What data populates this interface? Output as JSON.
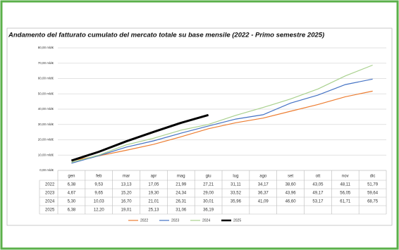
{
  "chart_data": {
    "type": "line",
    "title": "Andamento del fatturato cumulato del mercato totale su base mensile (2022 - Primo semestre 2025)",
    "categories": [
      "gen",
      "feb",
      "mar",
      "apr",
      "mag",
      "giu",
      "lug",
      "ago",
      "set",
      "ott",
      "nov",
      "dic"
    ],
    "ylim": [
      0,
      80
    ],
    "yticks": [
      {
        "value": 0,
        "label": "0,00 mld€"
      },
      {
        "value": 10,
        "label": "10,00 mld€"
      },
      {
        "value": 20,
        "label": "20,00 mld€"
      },
      {
        "value": 30,
        "label": "30,00 mld€"
      },
      {
        "value": 40,
        "label": "40,00 mld€"
      },
      {
        "value": 50,
        "label": "50,00 mld€"
      },
      {
        "value": 60,
        "label": "60,00 mld€"
      },
      {
        "value": 70,
        "label": "70,00 mld€"
      },
      {
        "value": 80,
        "label": "80,00 mld€"
      }
    ],
    "grid": true,
    "legend": "bottom",
    "series": [
      {
        "name": "2022",
        "color": "#ed7d31",
        "values": [
          6.38,
          9.53,
          13.13,
          17.05,
          21.99,
          27.21,
          31.11,
          34.17,
          38.6,
          43.05,
          48.11,
          51.79
        ],
        "value_labels": [
          "6,38",
          "9,53",
          "13,13",
          "17,05",
          "21,99",
          "27,21",
          "31,11",
          "34,17",
          "38,60",
          "43,05",
          "48,11",
          "51,79"
        ]
      },
      {
        "name": "2023",
        "color": "#4472c4",
        "values": [
          4.67,
          9.65,
          15.2,
          19.3,
          24.34,
          29.0,
          33.52,
          36.37,
          43.96,
          49.17,
          56.05,
          59.64
        ],
        "value_labels": [
          "4,67",
          "9,65",
          "15,20",
          "19,30",
          "24,34",
          "29,00",
          "33,52",
          "36,37",
          "43,96",
          "49,17",
          "56,05",
          "59,64"
        ]
      },
      {
        "name": "2024",
        "color": "#a9d18e",
        "values": [
          5.3,
          10.03,
          16.7,
          21.01,
          26.31,
          30.01,
          35.96,
          41.09,
          46.6,
          53.17,
          61.71,
          68.75
        ],
        "value_labels": [
          "5,30",
          "10,03",
          "16,70",
          "21,01",
          "26,31",
          "30,01",
          "35,96",
          "41,09",
          "46,60",
          "53,17",
          "61,71",
          "68,75"
        ]
      },
      {
        "name": "2025",
        "color": "#000000",
        "values": [
          6.38,
          12.2,
          19.01,
          25.13,
          31.06,
          36.19,
          null,
          null,
          null,
          null,
          null,
          null
        ],
        "value_labels": [
          "6,38",
          "12,20",
          "19,01",
          "25,13",
          "31,06",
          "36,19",
          null,
          null,
          null,
          null,
          null,
          null
        ]
      }
    ]
  }
}
